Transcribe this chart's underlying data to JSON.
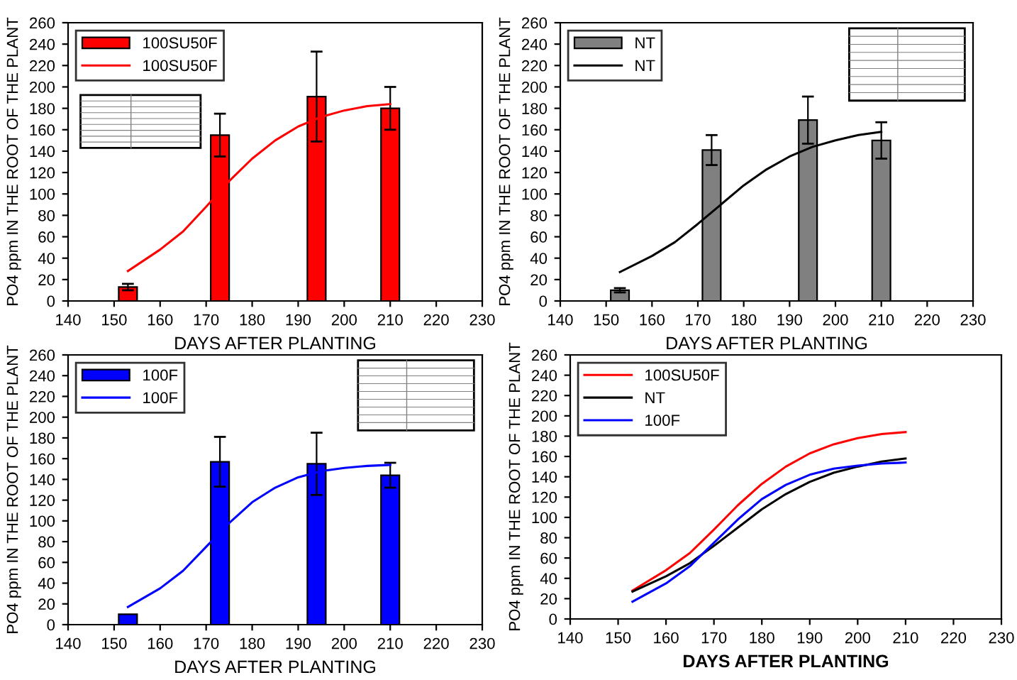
{
  "chart_data": [
    {
      "type": "bar",
      "xlabel": "DAYS AFTER PLANTING",
      "ylabel": "PO4 ppm IN THE ROOT OF THE PLANT",
      "xlim": [
        140,
        230
      ],
      "xticks": [
        140,
        150,
        160,
        170,
        180,
        190,
        200,
        210,
        220,
        230
      ],
      "ylim": [
        0,
        260
      ],
      "yticks": [
        0,
        20,
        40,
        60,
        80,
        100,
        120,
        140,
        160,
        180,
        200,
        220,
        240,
        260
      ],
      "grid": false,
      "legend": "top left",
      "series": [
        {
          "name": "100SU50F",
          "type": "bar",
          "color": "#ff0000",
          "x": [
            153,
            173,
            194,
            210
          ],
          "values": [
            13,
            155,
            191,
            180
          ],
          "errors": [
            3,
            20,
            42,
            20
          ]
        },
        {
          "name": "100SU50F",
          "type": "line",
          "color": "#ff0000",
          "x": [
            153,
            160,
            165,
            170,
            175,
            180,
            185,
            190,
            195,
            200,
            205,
            210
          ],
          "values": [
            28,
            48,
            65,
            88,
            112,
            133,
            150,
            163,
            172,
            178,
            182,
            184
          ]
        }
      ]
    },
    {
      "type": "bar",
      "xlabel": "DAYS AFTER PLANTING",
      "ylabel": "PO4 ppm IN THE ROOT OF THE PLANT",
      "xlim": [
        140,
        230
      ],
      "xticks": [
        140,
        150,
        160,
        170,
        180,
        190,
        200,
        210,
        220,
        230
      ],
      "ylim": [
        0,
        260
      ],
      "yticks": [
        0,
        20,
        40,
        60,
        80,
        100,
        120,
        140,
        160,
        180,
        200,
        220,
        240,
        260
      ],
      "grid": false,
      "legend": "top left",
      "series": [
        {
          "name": "NT",
          "type": "bar",
          "color": "#808080",
          "x": [
            153,
            173,
            194,
            210
          ],
          "values": [
            10,
            141,
            169,
            150
          ],
          "errors": [
            2,
            14,
            22,
            17
          ]
        },
        {
          "name": "NT",
          "type": "line",
          "color": "#000000",
          "x": [
            153,
            160,
            165,
            170,
            175,
            180,
            185,
            190,
            195,
            200,
            205,
            210
          ],
          "values": [
            27,
            42,
            55,
            72,
            90,
            108,
            123,
            135,
            144,
            150,
            155,
            158
          ]
        }
      ]
    },
    {
      "type": "bar",
      "xlabel": "DAYS AFTER PLANTING",
      "ylabel": "PO4 ppm IN THE ROOT OF THE PLANT",
      "xlim": [
        140,
        230
      ],
      "xticks": [
        140,
        150,
        160,
        170,
        180,
        190,
        200,
        210,
        220,
        230
      ],
      "ylim": [
        0,
        260
      ],
      "yticks": [
        0,
        20,
        40,
        60,
        80,
        100,
        120,
        140,
        160,
        180,
        200,
        220,
        240,
        260
      ],
      "grid": false,
      "legend": "top left",
      "series": [
        {
          "name": "100F",
          "type": "bar",
          "color": "#0000ff",
          "x": [
            153,
            173,
            194,
            210
          ],
          "values": [
            10,
            157,
            155,
            144
          ],
          "errors": [
            null,
            24,
            30,
            12
          ]
        },
        {
          "name": "100F",
          "type": "line",
          "color": "#0000ff",
          "x": [
            153,
            160,
            165,
            170,
            175,
            180,
            185,
            190,
            195,
            200,
            205,
            210
          ],
          "values": [
            17,
            35,
            52,
            75,
            98,
            118,
            132,
            142,
            148,
            151,
            153,
            154
          ]
        }
      ]
    },
    {
      "type": "line",
      "xlabel": "DAYS AFTER PLANTING",
      "ylabel": "PO4 ppm IN THE ROOT OF THE PLANT",
      "xlim": [
        140,
        230
      ],
      "xticks": [
        140,
        150,
        160,
        170,
        180,
        190,
        200,
        210,
        220,
        230
      ],
      "ylim": [
        0,
        260
      ],
      "yticks": [
        0,
        20,
        40,
        60,
        80,
        100,
        120,
        140,
        160,
        180,
        200,
        220,
        240,
        260
      ],
      "grid": false,
      "legend": "top left",
      "series": [
        {
          "name": "100SU50F",
          "color": "#ff0000",
          "x": [
            153,
            160,
            165,
            170,
            175,
            180,
            185,
            190,
            195,
            200,
            205,
            210
          ],
          "values": [
            28,
            48,
            65,
            88,
            112,
            133,
            150,
            163,
            172,
            178,
            182,
            184
          ]
        },
        {
          "name": "NT",
          "color": "#000000",
          "x": [
            153,
            160,
            165,
            170,
            175,
            180,
            185,
            190,
            195,
            200,
            205,
            210
          ],
          "values": [
            27,
            42,
            55,
            72,
            90,
            108,
            123,
            135,
            144,
            150,
            155,
            158
          ]
        },
        {
          "name": "100F",
          "color": "#0000ff",
          "x": [
            153,
            160,
            165,
            170,
            175,
            180,
            185,
            190,
            195,
            200,
            205,
            210
          ],
          "values": [
            17,
            35,
            52,
            75,
            98,
            118,
            132,
            142,
            148,
            151,
            153,
            154
          ]
        }
      ]
    }
  ]
}
